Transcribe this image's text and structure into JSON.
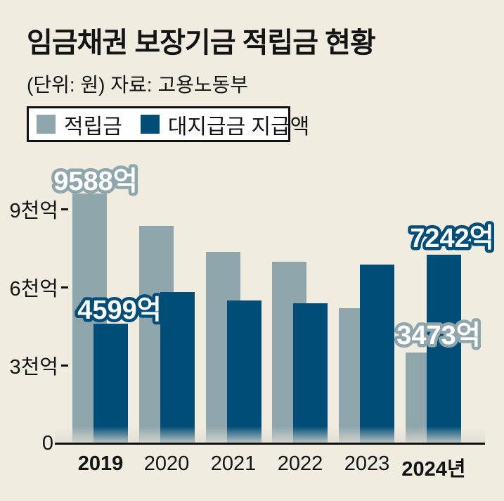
{
  "title": "임금채권 보장기금 적립금 현황",
  "subtitle": "(단위: 원) 자료: 고용노동부",
  "colors": {
    "background": "#F0ECDF",
    "reserve": "#8EA6AC",
    "payout": "#004D78",
    "axis": "#111111",
    "label_fill": "#FFFFFF"
  },
  "legend": {
    "items": [
      {
        "label": "적립금",
        "color": "#8EA6AC"
      },
      {
        "label": "대지급금 지급액",
        "color": "#004D78"
      }
    ]
  },
  "chart_data": {
    "type": "bar",
    "categories": [
      "2019",
      "2020",
      "2021",
      "2022",
      "2023",
      "2024년"
    ],
    "bold_categories": [
      "2019",
      "2024년"
    ],
    "series": [
      {
        "name": "적립금",
        "color": "#8EA6AC",
        "values": [
          9588,
          8350,
          7350,
          6970,
          5190,
          3473
        ]
      },
      {
        "name": "대지급금 지급액",
        "color": "#004D78",
        "values": [
          4599,
          5810,
          5490,
          5380,
          6860,
          7242
        ]
      }
    ],
    "unit": "억 원",
    "ylim": [
      0,
      10400
    ],
    "yticks": [
      {
        "value": 9000,
        "label": "9천억"
      },
      {
        "value": 6000,
        "label": "6천억"
      },
      {
        "value": 3000,
        "label": "3천억"
      },
      {
        "value": 0,
        "label": "0"
      }
    ],
    "grid": false,
    "legend_position": "top-left",
    "annotations": [
      {
        "text": "9588억",
        "year": "2019",
        "series": "적립금"
      },
      {
        "text": "4599억",
        "year": "2019",
        "series": "대지급금 지급액"
      },
      {
        "text": "7242억",
        "year": "2024년",
        "series": "대지급금 지급액"
      },
      {
        "text": "3473억",
        "year": "2024년",
        "series": "적립금"
      }
    ]
  }
}
